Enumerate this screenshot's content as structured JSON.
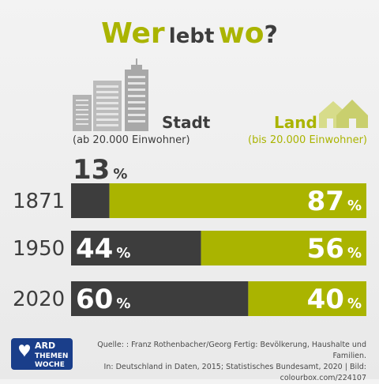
{
  "title": {
    "part1": "Wer",
    "part2": "lebt",
    "part3": "wo",
    "part4": "?"
  },
  "categories": {
    "stadt": {
      "label": "Stadt",
      "sub": "(ab 20.000 Einwohner)",
      "icon": "city-skyline-icon"
    },
    "land": {
      "label": "Land",
      "sub": "(bis 20.000 Einwohner)",
      "icon": "houses-icon"
    }
  },
  "colors": {
    "stadt": "#3d3d3d",
    "land": "#aab400",
    "background": "#eeeeee"
  },
  "percent_sign": "%",
  "chart_data": {
    "type": "bar",
    "orientation": "horizontal",
    "stacked": true,
    "normalized": true,
    "categories": [
      "1871",
      "1950",
      "2020"
    ],
    "series": [
      {
        "name": "Stadt",
        "values": [
          13,
          44,
          60
        ]
      },
      {
        "name": "Land",
        "values": [
          87,
          56,
          40
        ]
      }
    ],
    "value_suffix": "%",
    "xlim": [
      0,
      100
    ]
  },
  "footer": {
    "logo_text": [
      "ARD",
      "THEMEN",
      "WOCHE"
    ],
    "source_line1": "Quelle: : Franz Rothenbacher/Georg Fertig: Bevölkerung, Haushalte und Familien.",
    "source_line2": "In: Deutschland in Daten, 2015; Statistisches Bundesamt, 2020 | Bild: colourbox.com/224107"
  }
}
